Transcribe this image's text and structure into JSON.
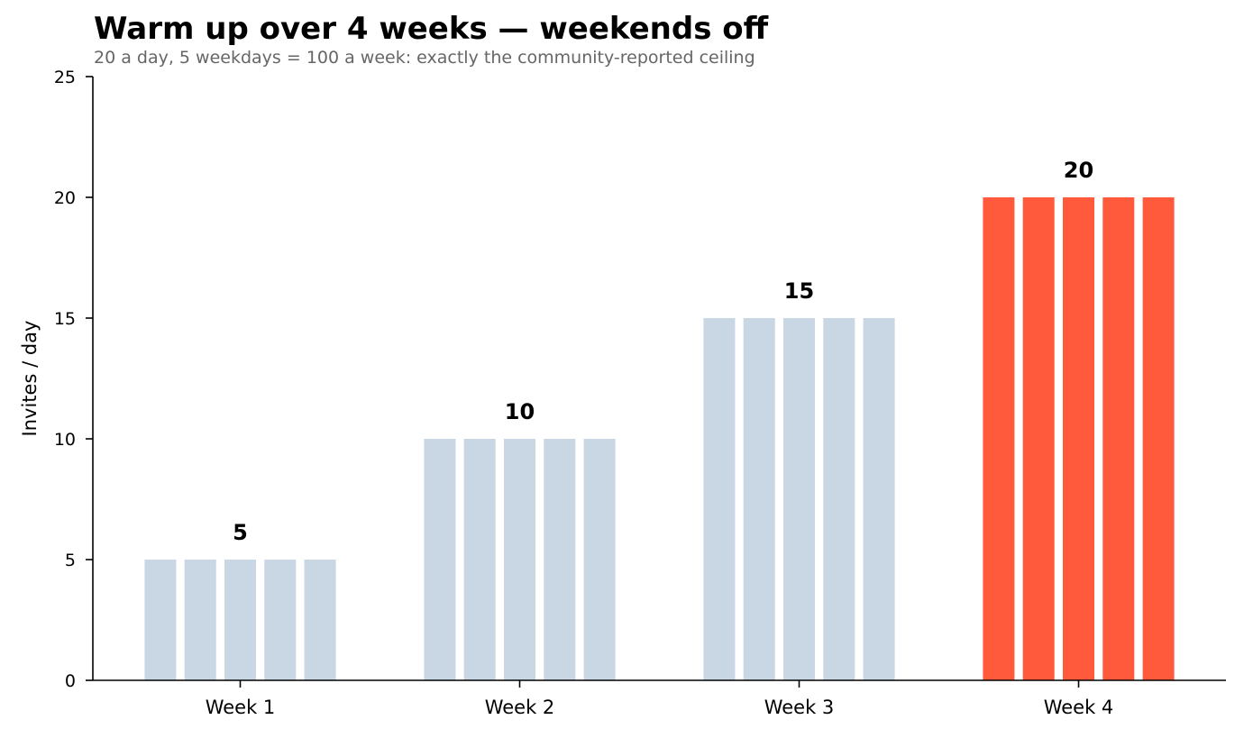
{
  "chart_data": {
    "type": "bar",
    "title": "Warm up over 4 weeks — weekends off",
    "subtitle": "20 a day, 5 weekdays = 100 a week: exactly the community-reported ceiling",
    "xlabel": "",
    "ylabel": "Invites / day",
    "ylim": [
      0,
      25
    ],
    "yticks": [
      0,
      5,
      10,
      15,
      20,
      25
    ],
    "grid": false,
    "categories": [
      "Week 1",
      "Week 2",
      "Week 3",
      "Week 4"
    ],
    "bars_per_category": 5,
    "values": [
      5,
      10,
      15,
      20
    ],
    "value_labels": [
      "5",
      "10",
      "15",
      "20"
    ],
    "colors": [
      "#c9d6e4",
      "#c9d6e4",
      "#c9d6e4",
      "#ff5a3c"
    ]
  }
}
